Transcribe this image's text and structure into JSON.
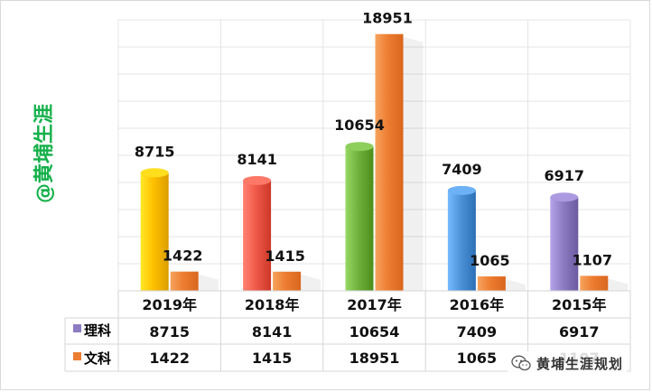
{
  "watermark_side": "@黄埔生涯",
  "brand": {
    "name": "黄埔生涯规划"
  },
  "colors": {
    "wenke": "#ED7D31",
    "like_legend": "#8E7CC3",
    "like_bars": [
      "#FFC000",
      "#F05A4A",
      "#70B13D",
      "#4E92D8",
      "#8E7CC3"
    ]
  },
  "chart_data": {
    "type": "bar",
    "categories": [
      "2019年",
      "2018年",
      "2017年",
      "2016年",
      "2015年"
    ],
    "series": [
      {
        "name": "理科",
        "values": [
          8715,
          8141,
          10654,
          7409,
          6917
        ]
      },
      {
        "name": "文科",
        "values": [
          1422,
          1415,
          18951,
          1065,
          1107
        ]
      }
    ],
    "ylim": [
      0,
      20000
    ],
    "grid": true,
    "legend": "table"
  }
}
